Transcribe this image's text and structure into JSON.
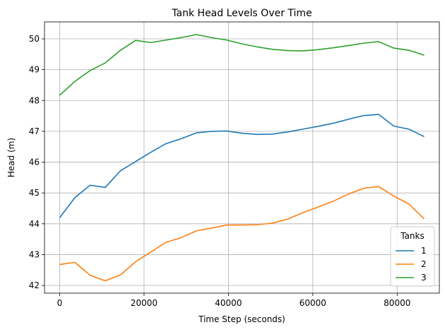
{
  "chart_data": {
    "type": "line",
    "title": "Tank Head Levels Over Time",
    "xlabel": "Time Step (seconds)",
    "ylabel": "Head (m)",
    "xlim": [
      -3600,
      90000
    ],
    "ylim": [
      41.75,
      50.55
    ],
    "xticks": [
      0,
      20000,
      40000,
      60000,
      80000
    ],
    "yticks": [
      42,
      43,
      44,
      45,
      46,
      47,
      48,
      49,
      50
    ],
    "grid": true,
    "legend": {
      "title": "Tanks",
      "placement": "lower-right"
    },
    "x": [
      0,
      3600,
      7200,
      10800,
      14400,
      18000,
      21600,
      25200,
      28800,
      32400,
      36000,
      39600,
      43200,
      46800,
      50400,
      54000,
      57600,
      61200,
      64800,
      68400,
      72000,
      75600,
      79200,
      82800,
      86400
    ],
    "series": [
      {
        "name": "1",
        "color": "#1f77b4",
        "values": [
          44.2,
          44.85,
          45.25,
          45.18,
          45.72,
          46.02,
          46.32,
          46.6,
          46.76,
          46.95,
          47.0,
          47.01,
          46.94,
          46.9,
          46.91,
          46.98,
          47.07,
          47.16,
          47.26,
          47.39,
          47.51,
          47.55,
          47.17,
          47.07,
          46.83
        ]
      },
      {
        "name": "2",
        "color": "#ff7f0e",
        "values": [
          42.68,
          42.75,
          42.33,
          42.15,
          42.34,
          42.77,
          43.08,
          43.4,
          43.55,
          43.77,
          43.86,
          43.96,
          43.96,
          43.97,
          44.02,
          44.15,
          44.36,
          44.54,
          44.73,
          44.96,
          45.15,
          45.21,
          44.9,
          44.64,
          44.16
        ]
      },
      {
        "name": "3",
        "color": "#2ca02c",
        "values": [
          48.17,
          48.62,
          48.97,
          49.22,
          49.63,
          49.95,
          49.88,
          49.96,
          50.04,
          50.14,
          50.04,
          49.96,
          49.84,
          49.74,
          49.66,
          49.62,
          49.61,
          49.65,
          49.71,
          49.78,
          49.86,
          49.91,
          49.7,
          49.63,
          49.47
        ]
      }
    ]
  }
}
